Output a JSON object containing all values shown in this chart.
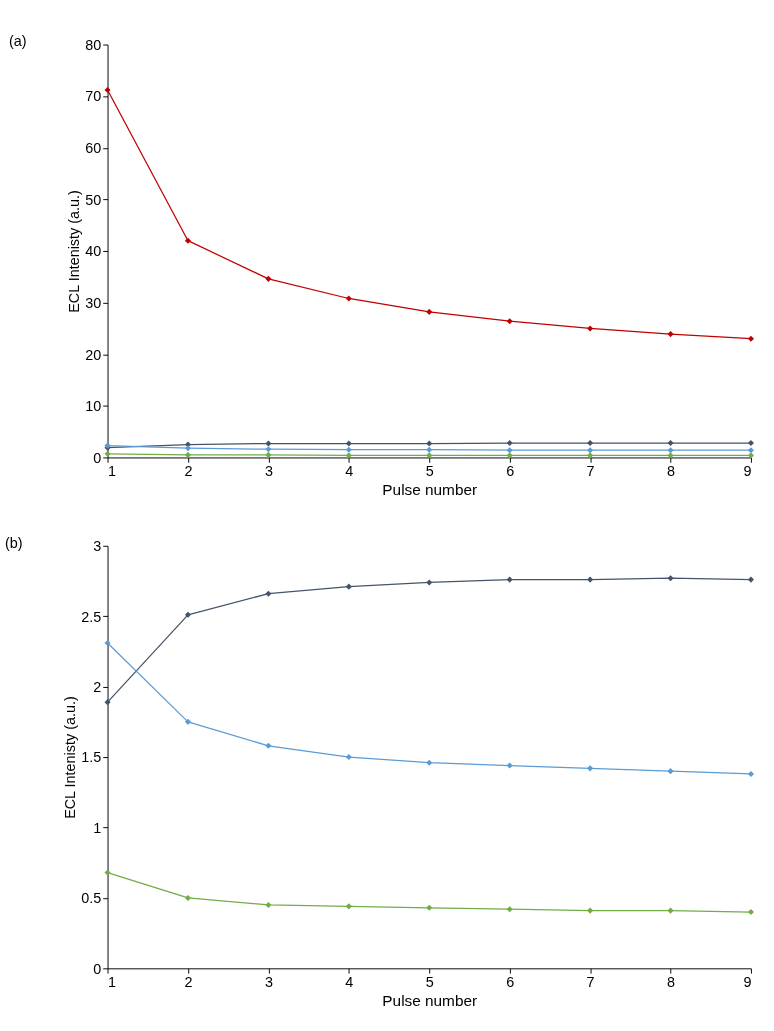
{
  "chart_data": [
    {
      "type": "line",
      "title": "(a)",
      "xlabel": "Pulse number",
      "ylabel": "ECL Intenisty (a.u.)",
      "x": [
        1,
        2,
        3,
        4,
        5,
        6,
        7,
        8,
        9
      ],
      "xlim": [
        1,
        9
      ],
      "xticks": [
        1,
        2,
        3,
        4,
        5,
        6,
        7,
        8,
        9
      ],
      "ylim": [
        0,
        80
      ],
      "yticks": [
        0,
        10,
        20,
        30,
        40,
        50,
        60,
        70,
        80
      ],
      "grid": false,
      "legend": false,
      "marker": "diamond",
      "line_style": "solid",
      "series": [
        {
          "color": "#c00000",
          "values": [
            71.2,
            42,
            34.6,
            30.8,
            28.2,
            26.4,
            25,
            23.9,
            23
          ]
        },
        {
          "color": "#44546a",
          "values": [
            1.9,
            2.5,
            2.7,
            2.7,
            2.7,
            2.8,
            2.8,
            2.8,
            2.8
          ]
        },
        {
          "color": "#5b9bd5",
          "values": [
            2.3,
            1.8,
            1.6,
            1.5,
            1.5,
            1.4,
            1.4,
            1.4,
            1.4
          ]
        },
        {
          "color": "#70ad47",
          "values": [
            0.7,
            0.5,
            0.5,
            0.4,
            0.4,
            0.4,
            0.4,
            0.4,
            0.4
          ]
        }
      ]
    },
    {
      "type": "line",
      "title": "(b)",
      "xlabel": "Pulse number",
      "ylabel": "ECL Intenisty (a.u.)",
      "x": [
        1,
        2,
        3,
        4,
        5,
        6,
        7,
        8,
        9
      ],
      "xlim": [
        1,
        9
      ],
      "xticks": [
        1,
        2,
        3,
        4,
        5,
        6,
        7,
        8,
        9
      ],
      "ylim": [
        0,
        3
      ],
      "yticks": [
        0,
        0.5,
        1,
        1.5,
        2,
        2.5,
        3
      ],
      "grid": false,
      "legend": false,
      "marker": "diamond",
      "line_style": "solid",
      "series": [
        {
          "color": "#44546a",
          "values": [
            1.89,
            2.51,
            2.66,
            2.71,
            2.74,
            2.76,
            2.76,
            2.77,
            2.76
          ]
        },
        {
          "color": "#5b9bd5",
          "values": [
            2.31,
            1.75,
            1.58,
            1.5,
            1.46,
            1.44,
            1.42,
            1.4,
            1.38
          ]
        },
        {
          "color": "#70ad47",
          "values": [
            0.68,
            0.5,
            0.45,
            0.44,
            0.43,
            0.42,
            0.41,
            0.41,
            0.4
          ]
        }
      ]
    }
  ]
}
